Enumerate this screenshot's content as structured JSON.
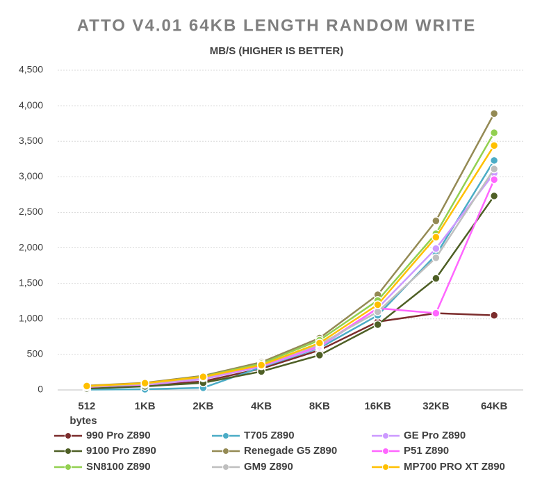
{
  "chart_data": {
    "type": "line",
    "title": "ATTO V4.01 64KB LENGTH RANDOM WRITE",
    "subtitle": "MB/S (HIGHER IS BETTER)",
    "x_label": "bytes",
    "categories": [
      "512",
      "1KB",
      "2KB",
      "4KB",
      "8KB",
      "16KB",
      "32KB",
      "64KB"
    ],
    "ylim": [
      0,
      4500
    ],
    "yticks": [
      0,
      500,
      {
        "value": 1000,
        "label": "1,000"
      },
      {
        "value": 1500,
        "label": "1,500"
      },
      {
        "value": 2000,
        "label": "2,000"
      },
      {
        "value": 2500,
        "label": "2,500"
      },
      {
        "value": 3000,
        "label": "3,000"
      },
      {
        "value": 3500,
        "label": "3,500"
      },
      {
        "value": 4000,
        "label": "4,000"
      },
      {
        "value": 4500,
        "label": "4,500"
      }
    ],
    "grid": true,
    "series": [
      {
        "name": "990 Pro Z890",
        "color": "#7b2c2c",
        "values": [
          40,
          60,
          120,
          300,
          560,
          960,
          1080,
          1050
        ]
      },
      {
        "name": "T705 Z890",
        "color": "#4bacc6",
        "values": [
          5,
          10,
          30,
          320,
          590,
          1050,
          1900,
          3230
        ]
      },
      {
        "name": "GE Pro Z890",
        "color": "#cc99ff",
        "values": [
          30,
          70,
          150,
          330,
          600,
          1150,
          1990,
          3050
        ]
      },
      {
        "name": "9100 Pro Z890",
        "color": "#4e5f25",
        "values": [
          20,
          50,
          100,
          260,
          490,
          920,
          1570,
          2730
        ]
      },
      {
        "name": "Renegade G5 Z890",
        "color": "#948a54",
        "values": [
          60,
          100,
          200,
          390,
          730,
          1340,
          2380,
          3890
        ]
      },
      {
        "name": "P51 Z890",
        "color": "#ff66ff",
        "values": [
          40,
          80,
          170,
          340,
          620,
          1150,
          1080,
          2960
        ]
      },
      {
        "name": "SN8100 Z890",
        "color": "#92d050",
        "values": [
          50,
          90,
          190,
          370,
          700,
          1260,
          2200,
          3620
        ]
      },
      {
        "name": "GM9 Z890",
        "color": "#bfbfbf",
        "values": [
          45,
          85,
          175,
          350,
          640,
          1100,
          1860,
          3110
        ]
      },
      {
        "name": "MP700 PRO XT Z890",
        "color": "#ffc000",
        "values": [
          55,
          95,
          185,
          350,
          660,
          1200,
          2150,
          3440
        ]
      }
    ]
  }
}
